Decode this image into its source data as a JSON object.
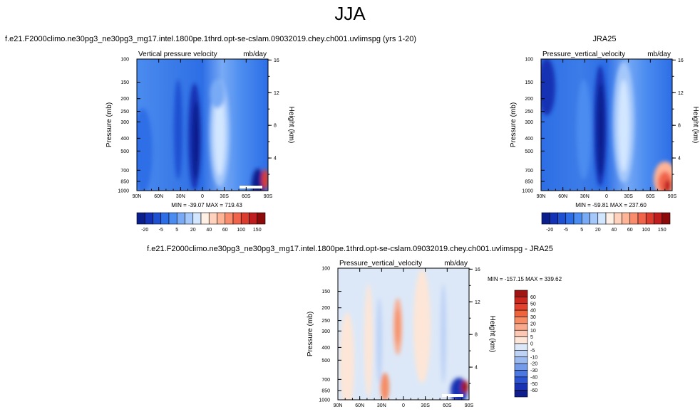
{
  "figure": {
    "title": "JJA"
  },
  "chart_data": [
    {
      "type": "heatmap",
      "title": "f.e21.F2000climo.ne30pg3_ne30pg3_mg17.intel.1800pe.1thrd.opt-se-cslam.09032019.chey.ch001.uvlimspg (yrs 1-20)",
      "left_label": "Vertical pressure velocity",
      "right_label": "mb/day",
      "xlabel": "",
      "ylabel": "Pressure (mb)",
      "y2label": "Height (km)",
      "x_ticks": [
        "90N",
        "60N",
        "30N",
        "0",
        "30S",
        "60S",
        "90S"
      ],
      "y_ticks": [
        100,
        150,
        200,
        250,
        300,
        400,
        500,
        700,
        850,
        1000
      ],
      "y2_ticks": [
        16,
        12,
        8,
        4
      ],
      "ylim": [
        1000,
        100
      ],
      "stats": "MIN = -39.07  MAX = 719.43",
      "colorbar": {
        "orientation": "horizontal",
        "tick_labels": [
          "-20",
          "-5",
          "5",
          "20",
          "40",
          "60",
          "100",
          "150"
        ],
        "colors": [
          "#0a1e8c",
          "#1432b4",
          "#1e50d2",
          "#2d6ee6",
          "#4b8cf0",
          "#78aaf5",
          "#a5c8fa",
          "#d2e6ff",
          "#fff0e6",
          "#ffd2be",
          "#ffb496",
          "#fa8c6e",
          "#f0644b",
          "#dc3c2d",
          "#be1e1e",
          "#8c0a0a"
        ]
      }
    },
    {
      "type": "heatmap",
      "title": "JRA25",
      "left_label": "Pressure_vertical_velocity",
      "right_label": "mb/day",
      "xlabel": "",
      "ylabel": "Pressure (mb)",
      "y2label": "Height (km)",
      "x_ticks": [
        "90N",
        "60N",
        "30N",
        "0",
        "30S",
        "60S",
        "90S"
      ],
      "y_ticks": [
        100,
        150,
        200,
        250,
        300,
        400,
        500,
        700,
        850,
        1000
      ],
      "y2_ticks": [
        16,
        12,
        8,
        4
      ],
      "ylim": [
        1000,
        100
      ],
      "stats": "MIN = -59.81  MAX = 237.60",
      "colorbar": {
        "orientation": "horizontal",
        "tick_labels": [
          "-20",
          "-5",
          "5",
          "20",
          "40",
          "60",
          "100",
          "150"
        ],
        "colors": [
          "#0a1e8c",
          "#1432b4",
          "#1e50d2",
          "#2d6ee6",
          "#4b8cf0",
          "#78aaf5",
          "#a5c8fa",
          "#d2e6ff",
          "#fff0e6",
          "#ffd2be",
          "#ffb496",
          "#fa8c6e",
          "#f0644b",
          "#dc3c2d",
          "#be1e1e",
          "#8c0a0a"
        ]
      }
    },
    {
      "type": "heatmap",
      "title": "f.e21.F2000climo.ne30pg3_ne30pg3_mg17.intel.1800pe.1thrd.opt-se-cslam.09032019.chey.ch001.uvlimspg - JRA25",
      "left_label": "Pressure_vertical_velocity",
      "right_label": "mb/day",
      "xlabel": "",
      "ylabel": "Pressure (mb)",
      "y2label": "Height (km)",
      "x_ticks": [
        "90N",
        "60N",
        "30N",
        "0",
        "30S",
        "60S",
        "90S"
      ],
      "y_ticks": [
        100,
        150,
        200,
        250,
        300,
        400,
        500,
        700,
        850,
        1000
      ],
      "y2_ticks": [
        16,
        12,
        8,
        4
      ],
      "ylim": [
        1000,
        100
      ],
      "stats": "MIN = -157.15  MAX = 339.62",
      "colorbar": {
        "orientation": "vertical",
        "tick_labels": [
          "60",
          "50",
          "40",
          "30",
          "20",
          "10",
          "5",
          "0",
          "-5",
          "-10",
          "-20",
          "-30",
          "-40",
          "-50",
          "-60"
        ],
        "colors": [
          "#a01414",
          "#c8281e",
          "#e1412d",
          "#f0643c",
          "#f58c64",
          "#faaa8c",
          "#fcc8b4",
          "#fde6d7",
          "#dce8f8",
          "#bed2f5",
          "#9bbaf0",
          "#739bea",
          "#4b78e1",
          "#2d55d2",
          "#1932b4",
          "#0f1e8c"
        ]
      }
    }
  ]
}
